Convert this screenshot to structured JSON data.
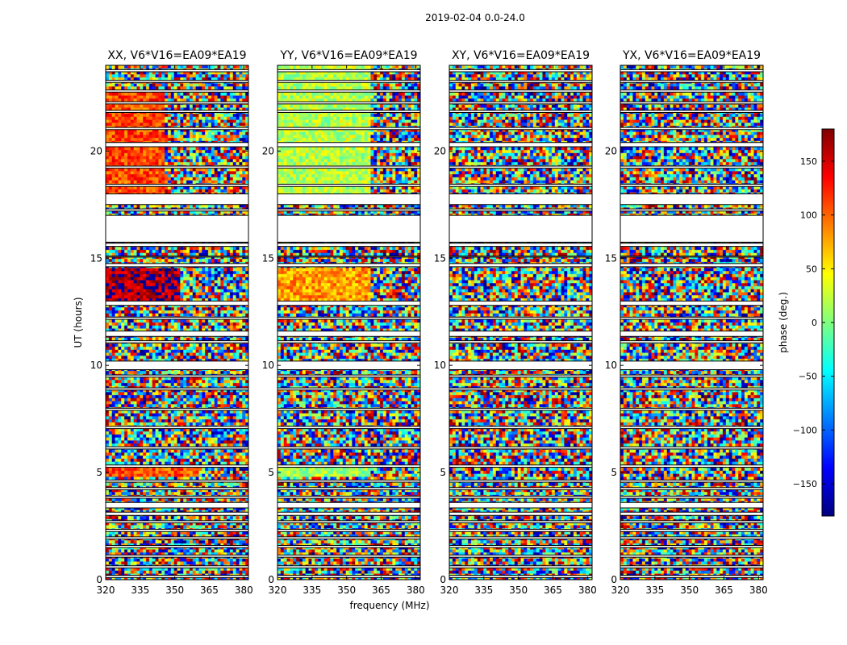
{
  "figure": {
    "title": "2019-02-04 0.0-24.0"
  },
  "chart_data": [
    {
      "type": "heatmap",
      "title": "XX, V6*V16=EA09*EA19",
      "xlabel": "frequency (MHz)",
      "ylabel": "UT (hours)",
      "xlim": [
        320,
        382
      ],
      "ylim": [
        0,
        24
      ],
      "xticks": [
        "320",
        "335",
        "350",
        "365",
        "380"
      ],
      "yticks": [
        "0",
        "5",
        "10",
        "15",
        "20"
      ],
      "value": "phase (deg.)",
      "coherent_regions": [
        {
          "t": [
            12.9,
            14.6
          ],
          "f": [
            320,
            352
          ],
          "phase": 165
        },
        {
          "t": [
            18.0,
            22.8
          ],
          "f": [
            320,
            345
          ],
          "phase": 110
        },
        {
          "t": [
            4.8,
            5.2
          ],
          "f": [
            320,
            360
          ],
          "phase": 105
        }
      ]
    },
    {
      "type": "heatmap",
      "title": "YY, V6*V16=EA09*EA19",
      "xlabel": "frequency (MHz)",
      "ylabel": "UT (hours)",
      "xlim": [
        320,
        382
      ],
      "ylim": [
        0,
        24
      ],
      "xticks": [
        "320",
        "335",
        "350",
        "365",
        "380"
      ],
      "yticks": [
        "0",
        "5",
        "10",
        "15",
        "20"
      ],
      "value": "phase (deg.)",
      "coherent_regions": [
        {
          "t": [
            18.0,
            24.0
          ],
          "f": [
            320,
            360
          ],
          "phase": 20
        },
        {
          "t": [
            12.9,
            14.6
          ],
          "f": [
            320,
            360
          ],
          "phase": 80
        },
        {
          "t": [
            4.8,
            5.2
          ],
          "f": [
            320,
            360
          ],
          "phase": 10
        }
      ]
    },
    {
      "type": "heatmap",
      "title": "XY, V6*V16=EA09*EA19",
      "xlabel": "frequency (MHz)",
      "ylabel": "UT (hours)",
      "xlim": [
        320,
        382
      ],
      "ylim": [
        0,
        24
      ],
      "xticks": [
        "320",
        "335",
        "350",
        "365",
        "380"
      ],
      "yticks": [
        "0",
        "5",
        "10",
        "15",
        "20"
      ],
      "value": "phase (deg.)",
      "coherent_regions": []
    },
    {
      "type": "heatmap",
      "title": "YX, V6*V16=EA09*EA19",
      "xlabel": "frequency (MHz)",
      "ylabel": "UT (hours)",
      "xlim": [
        320,
        382
      ],
      "ylim": [
        0,
        24
      ],
      "xticks": [
        "320",
        "335",
        "350",
        "365",
        "380"
      ],
      "yticks": [
        "0",
        "5",
        "10",
        "15",
        "20"
      ],
      "value": "phase (deg.)",
      "coherent_regions": []
    }
  ],
  "flagged_gaps_hours": [
    [
      0.1,
      0.2
    ],
    [
      0.55,
      0.65
    ],
    [
      1.05,
      1.15
    ],
    [
      1.5,
      1.6
    ],
    [
      1.9,
      2.0
    ],
    [
      2.25,
      2.35
    ],
    [
      2.65,
      2.75
    ],
    [
      3.0,
      3.15
    ],
    [
      3.35,
      3.6
    ],
    [
      3.8,
      3.9
    ],
    [
      4.2,
      4.3
    ],
    [
      4.55,
      4.65
    ],
    [
      5.25,
      5.35
    ],
    [
      6.1,
      6.2
    ],
    [
      7.05,
      7.15
    ],
    [
      7.9,
      8.0
    ],
    [
      8.85,
      8.95
    ],
    [
      9.45,
      9.55
    ],
    [
      9.8,
      10.2
    ],
    [
      11.05,
      11.15
    ],
    [
      11.35,
      11.6
    ],
    [
      12.15,
      12.25
    ],
    [
      12.8,
      13.0
    ],
    [
      14.6,
      14.75
    ],
    [
      15.05,
      15.1
    ],
    [
      15.55,
      15.7
    ],
    [
      15.75,
      17.0
    ],
    [
      17.2,
      17.3
    ],
    [
      17.5,
      18.0
    ],
    [
      18.35,
      18.45
    ],
    [
      19.2,
      19.3
    ],
    [
      20.2,
      20.4
    ],
    [
      21.0,
      21.1
    ],
    [
      21.8,
      21.9
    ],
    [
      22.2,
      22.3
    ],
    [
      22.75,
      22.85
    ],
    [
      23.2,
      23.3
    ],
    [
      23.7,
      23.8
    ]
  ],
  "colorbar": {
    "label": "phase (deg.)",
    "range": [
      -180,
      180
    ],
    "ticks": [
      {
        "value": 150,
        "label": "150"
      },
      {
        "value": 100,
        "label": "100"
      },
      {
        "value": 50,
        "label": "50"
      },
      {
        "value": 0,
        "label": "0"
      },
      {
        "value": -50,
        "label": "−50"
      },
      {
        "value": -100,
        "label": "−100"
      },
      {
        "value": -150,
        "label": "−150"
      }
    ],
    "colors": [
      "#00007f",
      "#0000ff",
      "#007fff",
      "#00ffff",
      "#7fff7f",
      "#ffff00",
      "#ff7f00",
      "#ff0000",
      "#7f0000"
    ]
  }
}
